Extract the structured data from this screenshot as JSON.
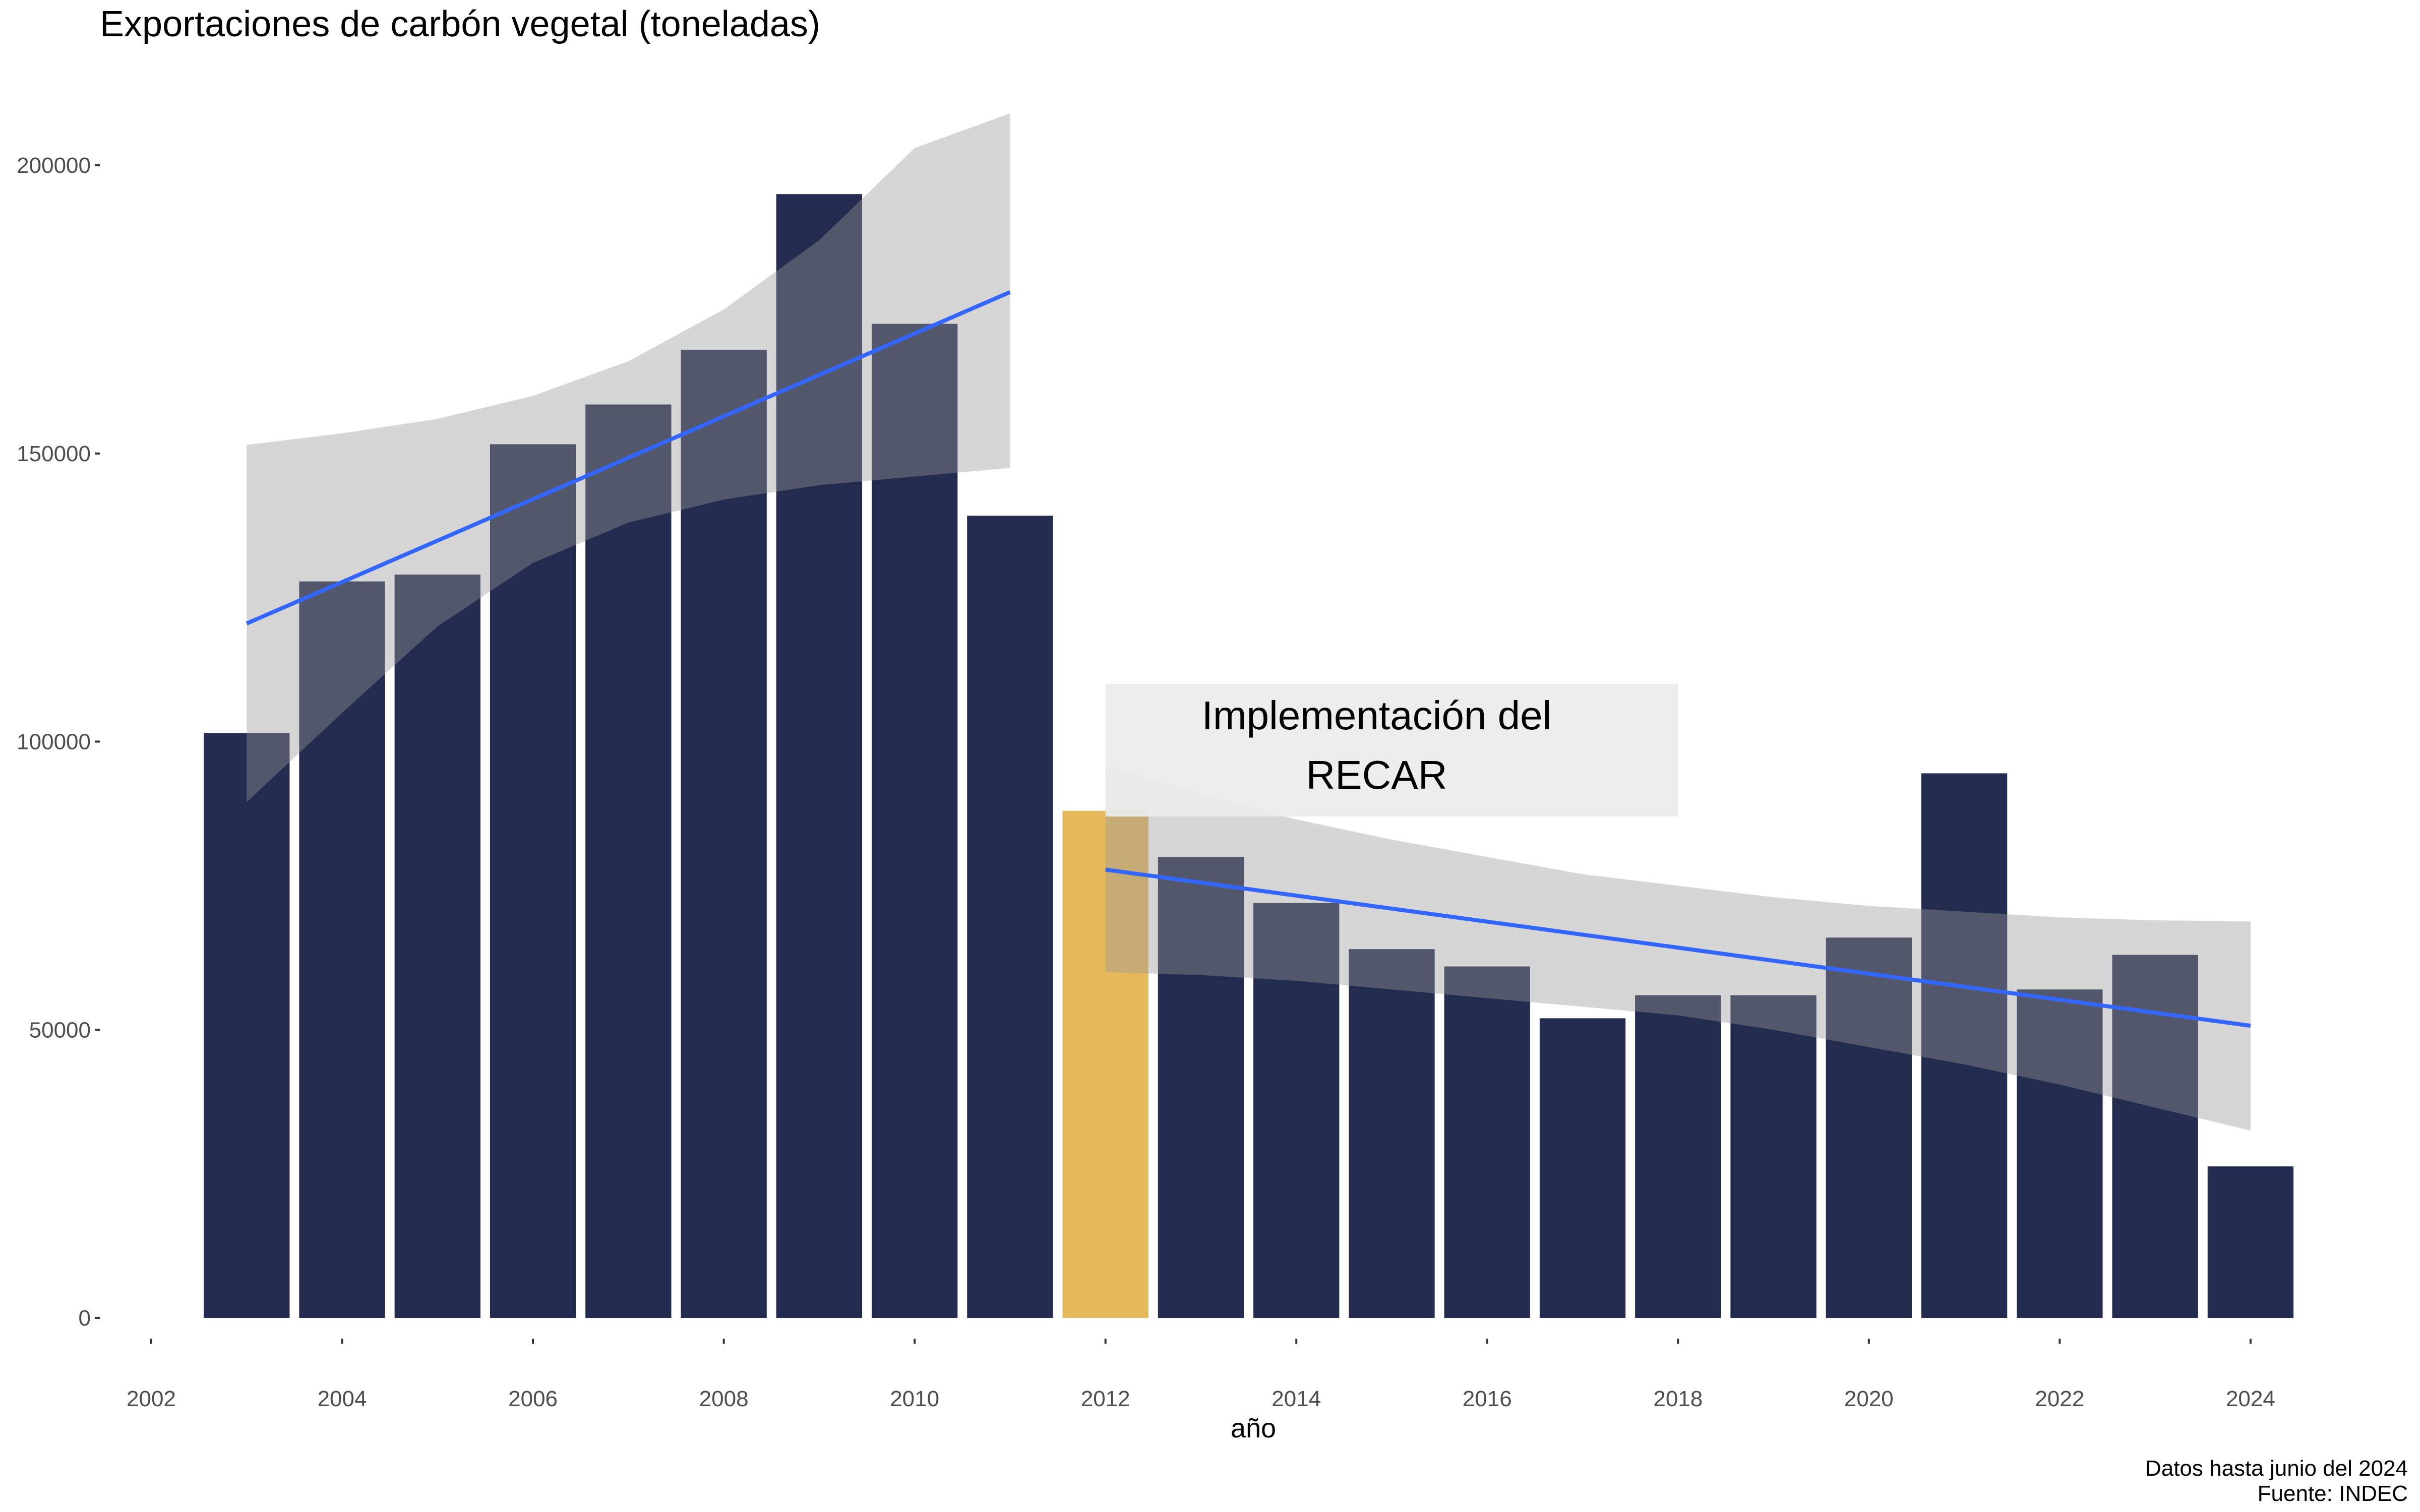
{
  "chart_data": {
    "type": "bar",
    "title": "Exportaciones de carbón vegetal (toneladas)",
    "xlabel": "año",
    "ylabel": "",
    "x": [
      2003,
      2004,
      2005,
      2006,
      2007,
      2008,
      2009,
      2010,
      2011,
      2012,
      2013,
      2014,
      2015,
      2016,
      2017,
      2018,
      2019,
      2020,
      2021,
      2022,
      2023,
      2024
    ],
    "values": [
      101500,
      127800,
      129000,
      151600,
      158500,
      168000,
      195000,
      172500,
      139200,
      88000,
      80000,
      72000,
      64000,
      61000,
      52000,
      56000,
      56000,
      66000,
      94500,
      57000,
      63000,
      26300
    ],
    "highlight": {
      "x": 2012,
      "color": "#E5B85C"
    },
    "bar_color": "#232C4E",
    "x_ticks": [
      2002,
      2004,
      2006,
      2008,
      2010,
      2012,
      2014,
      2016,
      2018,
      2020,
      2022,
      2024
    ],
    "y_ticks": [
      0,
      50000,
      100000,
      150000,
      200000
    ],
    "xlim": [
      2002,
      2024.55
    ],
    "ylim": [
      0,
      210000
    ],
    "grid": false,
    "trend_lines": [
      {
        "color": "#3366FF",
        "x": [
          2003,
          2011
        ],
        "y": [
          120500,
          178000
        ],
        "ci_lower": [
          89500,
          105000,
          120000,
          131000,
          138000,
          142000,
          144500,
          146000,
          147500
        ],
        "ci_upper": [
          151500,
          153500,
          156000,
          160000,
          166000,
          175000,
          187000,
          203000,
          209000
        ]
      },
      {
        "color": "#3366FF",
        "x": [
          2012,
          2024
        ],
        "y": [
          77800,
          50700
        ],
        "ci_lower": [
          60000,
          59500,
          58500,
          57000,
          55500,
          54000,
          52500,
          50000,
          47000,
          44000,
          40500,
          36500,
          32500
        ],
        "ci_upper": [
          95700,
          91000,
          86500,
          83000,
          80000,
          77000,
          75000,
          73000,
          71500,
          70500,
          69500,
          69000,
          68800
        ]
      }
    ],
    "annotation": {
      "lines": [
        "Implementación del",
        "RECAR"
      ],
      "x_range": [
        2012,
        2018
      ],
      "y_range": [
        87000,
        110000
      ],
      "fill": "#EBEBEB"
    },
    "caption": [
      "Datos hasta junio del 2024",
      "Fuente: INDEC"
    ]
  }
}
